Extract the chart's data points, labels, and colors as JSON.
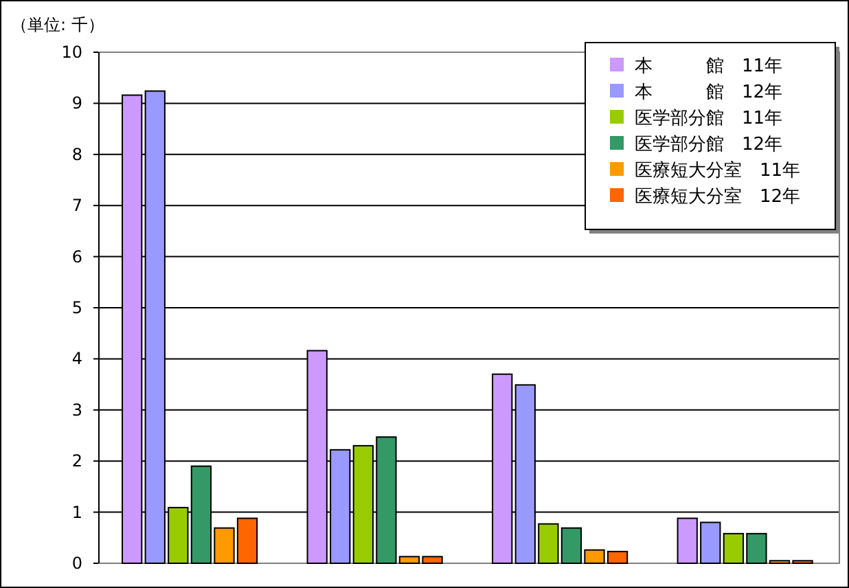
{
  "chart_data": {
    "type": "bar",
    "ylabel": "（単位: 千）",
    "categories": [
      null,
      null,
      null,
      null
    ],
    "series": [
      {
        "name": "本　　　館　11年",
        "color": "#cc99ff",
        "values": [
          9.16,
          4.16,
          3.7,
          0.88
        ]
      },
      {
        "name": "本　　　館　12年",
        "color": "#9999ff",
        "values": [
          9.24,
          2.22,
          3.49,
          0.8
        ]
      },
      {
        "name": "医学部分館　11年",
        "color": "#99cc00",
        "values": [
          1.09,
          2.3,
          0.77,
          0.58
        ]
      },
      {
        "name": "医学部分館　12年",
        "color": "#339966",
        "values": [
          1.9,
          2.47,
          0.69,
          0.58
        ]
      },
      {
        "name": "医療短大分室　11年",
        "color": "#ff9900",
        "values": [
          0.69,
          0.13,
          0.26,
          0.05
        ]
      },
      {
        "name": "医療短大分室　12年",
        "color": "#ff6600",
        "values": [
          0.88,
          0.13,
          0.23,
          0.05
        ]
      }
    ],
    "ylim": [
      0,
      10
    ],
    "yticks": [
      0,
      1,
      2,
      3,
      4,
      5,
      6,
      7,
      8,
      9,
      10
    ],
    "grid": "y",
    "legend": "top right"
  }
}
